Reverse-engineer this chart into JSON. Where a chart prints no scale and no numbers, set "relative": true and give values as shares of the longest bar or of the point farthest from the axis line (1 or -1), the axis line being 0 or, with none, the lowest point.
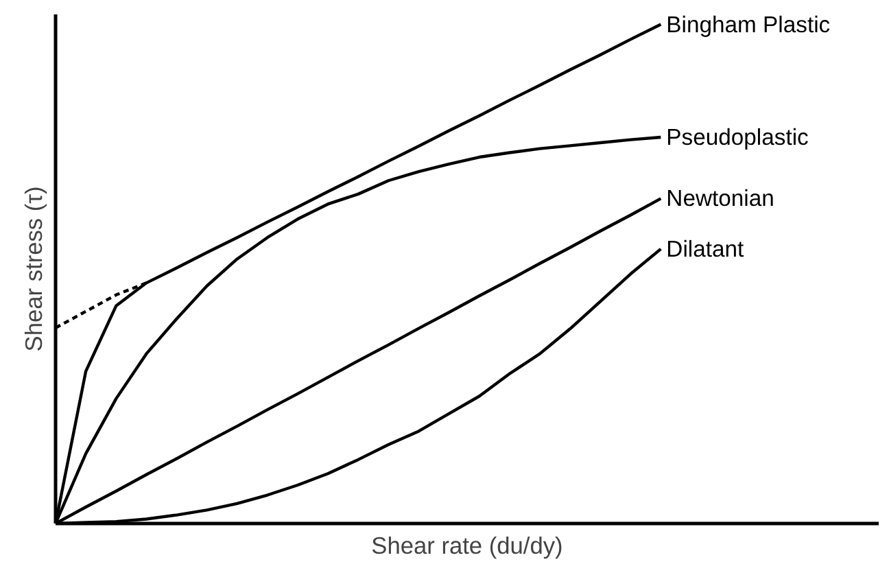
{
  "chart_data": {
    "type": "line",
    "relative": true,
    "xlabel": "Shear rate (du/dy)",
    "ylabel": "Shear stress (τ)",
    "legend": false,
    "grid": false,
    "marker": "none",
    "categories": [
      null,
      null,
      null,
      null,
      null,
      null,
      null,
      null,
      null,
      null,
      null,
      null,
      null,
      null,
      null,
      null,
      null,
      null,
      null,
      null,
      null
    ],
    "series": [
      {
        "name": "Bingham Plastic",
        "color": "#000000",
        "values": [
          0,
          0.305,
          0.436,
          0.482,
          0.512,
          0.543,
          0.573,
          0.604,
          0.634,
          0.665,
          0.695,
          0.726,
          0.756,
          0.787,
          0.817,
          0.848,
          0.878,
          0.909,
          0.939,
          0.97,
          1.0
        ]
      },
      {
        "color": "#000000",
        "line_style": "dashed",
        "values": [
          0.392,
          0.425,
          0.458,
          0.482,
          null,
          null,
          null,
          null,
          null,
          null,
          null,
          null,
          null,
          null,
          null,
          null,
          null,
          null,
          null,
          null,
          null
        ]
      },
      {
        "name": "Pseudoplastic",
        "color": "#000000",
        "values": [
          0,
          0.14,
          0.25,
          0.34,
          0.41,
          0.476,
          0.53,
          0.573,
          0.61,
          0.64,
          0.66,
          0.687,
          0.705,
          0.72,
          0.734,
          0.743,
          0.751,
          0.757,
          0.763,
          0.769,
          0.774
        ]
      },
      {
        "name": "Newtonian",
        "color": "#000000",
        "values": [
          0,
          0.033,
          0.065,
          0.098,
          0.13,
          0.163,
          0.195,
          0.228,
          0.26,
          0.293,
          0.326,
          0.358,
          0.391,
          0.423,
          0.456,
          0.488,
          0.521,
          0.553,
          0.586,
          0.618,
          0.651
        ]
      },
      {
        "name": "Dilatant",
        "color": "#000000",
        "values": [
          0,
          0.002,
          0.004,
          0.009,
          0.017,
          0.027,
          0.04,
          0.057,
          0.077,
          0.1,
          0.128,
          0.158,
          0.185,
          0.22,
          0.255,
          0.3,
          0.34,
          0.39,
          0.445,
          0.5,
          0.55
        ]
      }
    ]
  }
}
